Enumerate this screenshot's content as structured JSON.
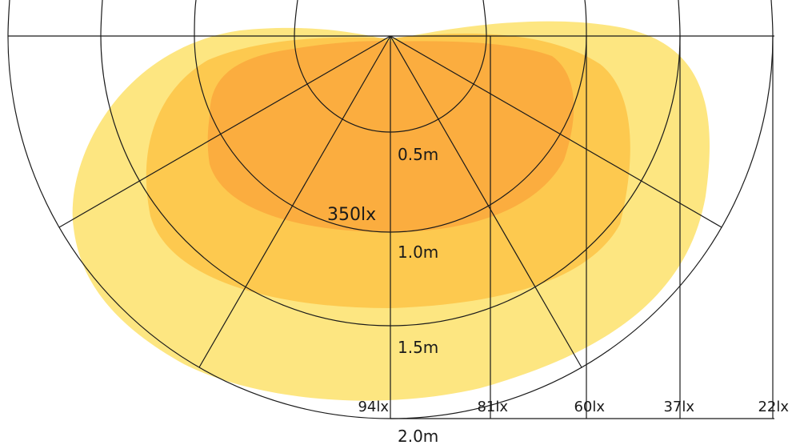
{
  "diagram": {
    "distance_labels": [
      "0.5m",
      "1.0m",
      "1.5m",
      "2.0m"
    ],
    "center_lux_label": "350lx",
    "lux_labels": [
      "94lx",
      "81lx",
      "60lx",
      "37lx",
      "22lx"
    ]
  },
  "colors": {
    "outer_zone": "#fde681",
    "middle_zone": "#fdc94f",
    "inner_zone": "#fbad3f",
    "lines": "#1a1a1a",
    "background": "#ffffff"
  }
}
